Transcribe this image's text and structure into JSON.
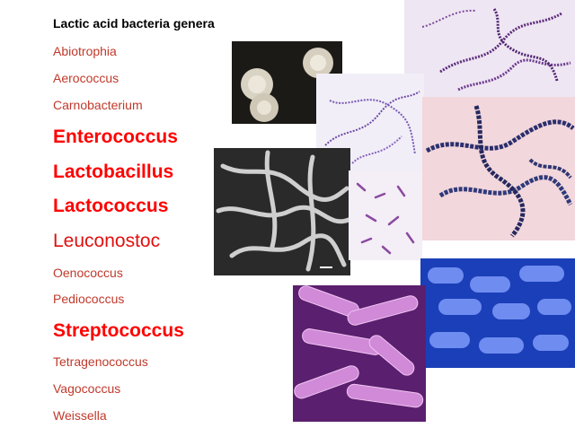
{
  "slide": {
    "title": "Lactic acid bacteria genera",
    "genera": [
      {
        "name": "Abiotrophia",
        "emphasis": "small"
      },
      {
        "name": "Aerococcus",
        "emphasis": "small"
      },
      {
        "name": "Carnobacterium",
        "emphasis": "small"
      },
      {
        "name": "Enterococcus",
        "emphasis": "big"
      },
      {
        "name": "Lactobacillus",
        "emphasis": "big"
      },
      {
        "name": "Lactococcus",
        "emphasis": "big"
      },
      {
        "name": "Leuconostoc",
        "emphasis": "mid"
      },
      {
        "name": "Oenococcus",
        "emphasis": "small"
      },
      {
        "name": "Pediococcus",
        "emphasis": "small"
      },
      {
        "name": "Streptococcus",
        "emphasis": "big"
      },
      {
        "name": "Tetragenococcus",
        "emphasis": "small"
      },
      {
        "name": "Vagococcus",
        "emphasis": "small"
      },
      {
        "name": "Weissella",
        "emphasis": "small"
      }
    ],
    "colors": {
      "title": "#000000",
      "genus_small": "#c0392b",
      "genus_big": "#ff0000",
      "genus_mid": "#e01010"
    }
  }
}
